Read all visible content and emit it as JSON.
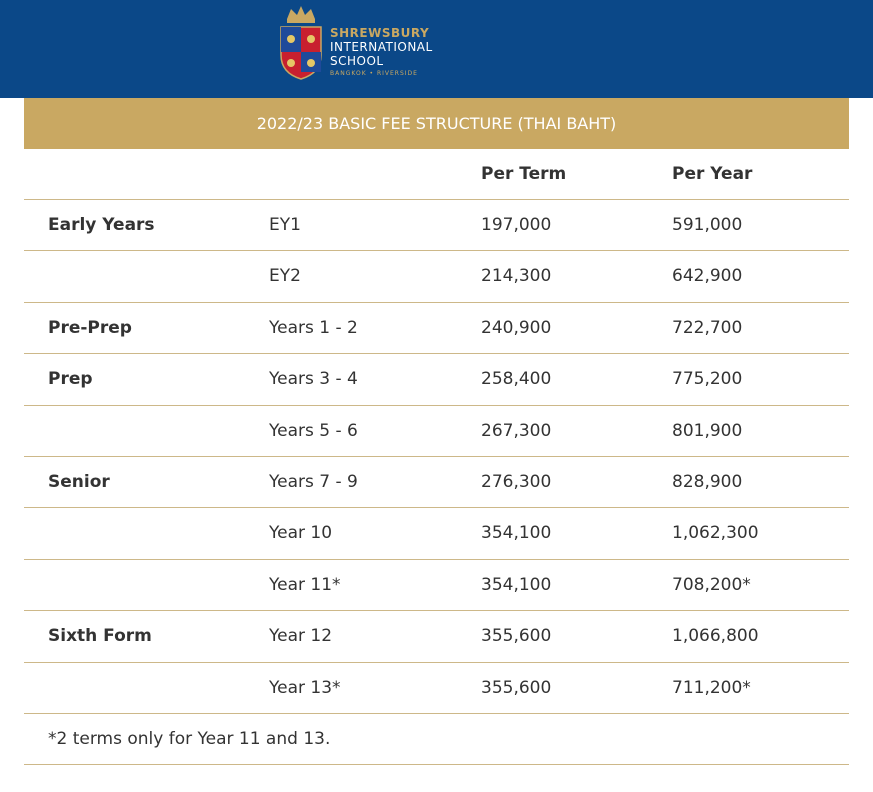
{
  "header": {
    "logo": {
      "name": "SHREWSBURY",
      "line2": "INTERNATIONAL",
      "line3": "SCHOOL",
      "location": "BANGKOK • RIVERSIDE"
    }
  },
  "table": {
    "title": "2022/23 BASIC FEE STRUCTURE (THAI BAHT)",
    "columns": [
      "Per Term",
      "Per Year"
    ],
    "rows": [
      [
        "Early Years",
        "EY1",
        "197,000",
        "591,000"
      ],
      [
        null,
        "EY2",
        "214,300",
        "642,900"
      ],
      [
        "Pre-Prep",
        "Years 1 - 2",
        "240,900",
        "722,700"
      ],
      [
        "Prep",
        "Years 3 - 4",
        "258,400",
        "775,200"
      ],
      [
        null,
        "Years 5 - 6",
        "267,300",
        "801,900"
      ],
      [
        "Senior",
        "Years 7 - 9",
        "276,300",
        "828,900"
      ],
      [
        null,
        "Year 10",
        "354,100",
        "1,062,300"
      ],
      [
        null,
        "Year 11*",
        "354,100",
        "708,200*"
      ],
      [
        "Sixth Form",
        "Year 12",
        "355,600",
        "1,066,800"
      ],
      [
        null,
        "Year 13*",
        "355,600",
        "711,200*"
      ]
    ],
    "footnote": "*2 terms only for Year 11 and 13."
  }
}
